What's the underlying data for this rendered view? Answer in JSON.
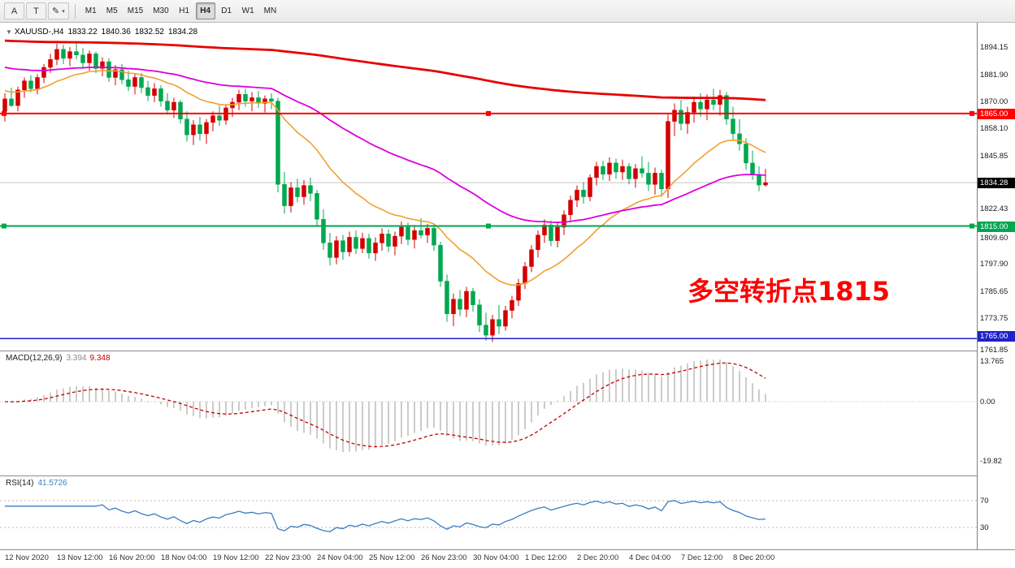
{
  "toolbar": {
    "tools": [
      {
        "label": "A"
      },
      {
        "label": "T"
      },
      {
        "label": "✎",
        "dropdown": "▾"
      }
    ],
    "timeframes": [
      "M1",
      "M5",
      "M15",
      "M30",
      "H1",
      "H4",
      "D1",
      "W1",
      "MN"
    ],
    "active_timeframe": "H4"
  },
  "chart_header": {
    "collapse_icon": "▼",
    "symbol_period": "XAUUSD-,H4",
    "open": "1833.22",
    "high": "1840.36",
    "low": "1832.52",
    "close": "1834.28"
  },
  "annotation": {
    "text": "多空转折点1815",
    "color": "#ff0000"
  },
  "indicators": {
    "macd": {
      "label": "MACD(12,26,9)",
      "main_value": "3.394",
      "signal_value": "9.348",
      "axis_labels": [
        "13.765",
        "0.00",
        "-19.82"
      ],
      "axis_values": [
        13.765,
        0,
        -19.82
      ]
    },
    "rsi": {
      "label": "RSI(14)",
      "value": "41.5726",
      "axis_labels": [
        "70",
        "30"
      ],
      "axis_values": [
        70,
        30
      ]
    }
  },
  "price_scale": [
    {
      "text": "1894.15",
      "price": 1894.15,
      "style": "plain"
    },
    {
      "text": "1881.90",
      "price": 1881.9,
      "style": "plain"
    },
    {
      "text": "1870.00",
      "price": 1870.0,
      "style": "plain"
    },
    {
      "text": "1865.00",
      "price": 1865.0,
      "style": "red"
    },
    {
      "text": "1858.10",
      "price": 1858.1,
      "style": "plain"
    },
    {
      "text": "1845.85",
      "price": 1845.85,
      "style": "plain"
    },
    {
      "text": "1834.28",
      "price": 1834.28,
      "style": "black"
    },
    {
      "text": "1822.43",
      "price": 1822.43,
      "style": "plain"
    },
    {
      "text": "1815.00",
      "price": 1815.0,
      "style": "green"
    },
    {
      "text": "1809.60",
      "price": 1809.6,
      "style": "plain"
    },
    {
      "text": "1797.90",
      "price": 1797.9,
      "style": "plain"
    },
    {
      "text": "1785.65",
      "price": 1785.65,
      "style": "plain"
    },
    {
      "text": "1773.75",
      "price": 1773.75,
      "style": "plain"
    },
    {
      "text": "1765.00",
      "price": 1765.0,
      "style": "blue"
    },
    {
      "text": "1761.85",
      "price": 1761.85,
      "style": "plain"
    }
  ],
  "time_axis": [
    "12 Nov 2020",
    "13 Nov 12:00",
    "16 Nov 20:00",
    "18 Nov 04:00",
    "19 Nov 12:00",
    "22 Nov 23:00",
    "24 Nov 04:00",
    "25 Nov 12:00",
    "26 Nov 23:00",
    "30 Nov 04:00",
    "1 Dec 12:00",
    "2 Dec 20:00",
    "4 Dec 04:00",
    "7 Dec 12:00",
    "8 Dec 20:00"
  ],
  "chart_data": {
    "type": "candlestick",
    "symbol": "XAUUSD-",
    "timeframe": "H4",
    "title": "XAUUSD-,H4 1833.22 1840.36 1832.52 1834.28",
    "y_range": [
      1761,
      1902
    ],
    "colors": {
      "up": "#d40000",
      "down": "#00a84f"
    },
    "ohlc": [
      [
        1866.0,
        1874.0,
        1861.5,
        1871.5
      ],
      [
        1871.5,
        1876.5,
        1868.0,
        1868.5
      ],
      [
        1868.5,
        1877.0,
        1866.0,
        1875.5
      ],
      [
        1875.5,
        1881.0,
        1872.0,
        1879.5
      ],
      [
        1879.5,
        1882.0,
        1874.5,
        1876.0
      ],
      [
        1876.0,
        1882.5,
        1873.5,
        1881.0
      ],
      [
        1881.0,
        1887.0,
        1878.5,
        1885.5
      ],
      [
        1885.5,
        1891.5,
        1883.0,
        1889.0
      ],
      [
        1889.0,
        1896.0,
        1886.5,
        1893.5
      ],
      [
        1893.5,
        1895.5,
        1887.0,
        1889.5
      ],
      [
        1889.5,
        1894.5,
        1886.0,
        1892.5
      ],
      [
        1892.5,
        1896.5,
        1889.0,
        1891.0
      ],
      [
        1891.0,
        1894.0,
        1885.5,
        1887.5
      ],
      [
        1887.5,
        1893.0,
        1884.0,
        1891.5
      ],
      [
        1891.5,
        1892.5,
        1883.0,
        1885.0
      ],
      [
        1885.0,
        1890.0,
        1881.5,
        1888.0
      ],
      [
        1888.0,
        1889.5,
        1879.0,
        1881.0
      ],
      [
        1881.0,
        1886.5,
        1877.5,
        1884.5
      ],
      [
        1884.5,
        1887.0,
        1878.0,
        1880.0
      ],
      [
        1880.0,
        1884.0,
        1875.0,
        1877.0
      ],
      [
        1877.0,
        1882.5,
        1873.5,
        1881.0
      ],
      [
        1881.0,
        1883.0,
        1874.0,
        1876.5
      ],
      [
        1876.5,
        1879.5,
        1870.5,
        1873.0
      ],
      [
        1873.0,
        1878.5,
        1870.0,
        1876.0
      ],
      [
        1876.0,
        1877.5,
        1868.0,
        1870.5
      ],
      [
        1870.5,
        1874.0,
        1864.5,
        1866.5
      ],
      [
        1866.5,
        1872.0,
        1863.0,
        1870.0
      ],
      [
        1870.0,
        1871.0,
        1860.5,
        1862.5
      ],
      [
        1862.5,
        1866.0,
        1852.5,
        1855.5
      ],
      [
        1855.5,
        1862.0,
        1851.0,
        1860.0
      ],
      [
        1860.0,
        1863.5,
        1853.0,
        1856.0
      ],
      [
        1856.0,
        1862.5,
        1851.5,
        1861.0
      ],
      [
        1861.0,
        1866.0,
        1857.0,
        1864.0
      ],
      [
        1864.0,
        1868.5,
        1859.5,
        1862.0
      ],
      [
        1862.0,
        1869.0,
        1860.0,
        1867.5
      ],
      [
        1867.5,
        1872.0,
        1863.5,
        1870.0
      ],
      [
        1870.0,
        1875.5,
        1866.5,
        1873.5
      ],
      [
        1873.5,
        1876.0,
        1868.0,
        1870.5
      ],
      [
        1870.5,
        1874.5,
        1866.0,
        1872.0
      ],
      [
        1872.0,
        1875.0,
        1867.5,
        1869.5
      ],
      [
        1869.5,
        1873.0,
        1865.5,
        1871.5
      ],
      [
        1871.5,
        1874.0,
        1867.0,
        1870.5
      ],
      [
        1870.5,
        1872.0,
        1830.0,
        1833.5
      ],
      [
        1833.5,
        1839.0,
        1820.5,
        1824.0
      ],
      [
        1824.0,
        1834.5,
        1821.0,
        1832.0
      ],
      [
        1832.0,
        1836.0,
        1825.5,
        1828.0
      ],
      [
        1828.0,
        1835.5,
        1824.5,
        1833.0
      ],
      [
        1833.0,
        1836.5,
        1826.0,
        1829.5
      ],
      [
        1829.5,
        1831.0,
        1815.0,
        1818.0
      ],
      [
        1818.0,
        1822.5,
        1804.5,
        1807.5
      ],
      [
        1807.5,
        1812.0,
        1797.5,
        1801.0
      ],
      [
        1801.0,
        1810.5,
        1798.0,
        1808.5
      ],
      [
        1808.5,
        1811.0,
        1800.0,
        1803.5
      ],
      [
        1803.5,
        1812.5,
        1801.5,
        1810.0
      ],
      [
        1810.0,
        1813.0,
        1802.5,
        1805.0
      ],
      [
        1805.0,
        1812.0,
        1803.0,
        1809.5
      ],
      [
        1809.5,
        1811.5,
        1800.5,
        1803.0
      ],
      [
        1803.0,
        1810.0,
        1799.5,
        1807.5
      ],
      [
        1807.5,
        1814.0,
        1804.0,
        1811.5
      ],
      [
        1811.5,
        1813.5,
        1803.5,
        1806.0
      ],
      [
        1806.0,
        1812.5,
        1802.0,
        1810.5
      ],
      [
        1810.5,
        1817.0,
        1807.0,
        1814.5
      ],
      [
        1814.5,
        1816.5,
        1806.5,
        1809.0
      ],
      [
        1809.0,
        1815.5,
        1805.0,
        1813.0
      ],
      [
        1813.0,
        1818.5,
        1809.5,
        1811.0
      ],
      [
        1811.0,
        1816.0,
        1807.5,
        1814.0
      ],
      [
        1814.0,
        1815.5,
        1804.0,
        1806.5
      ],
      [
        1806.5,
        1808.0,
        1788.0,
        1790.5
      ],
      [
        1790.5,
        1793.5,
        1772.5,
        1776.0
      ],
      [
        1776.0,
        1785.0,
        1770.5,
        1782.5
      ],
      [
        1782.5,
        1786.5,
        1775.0,
        1778.0
      ],
      [
        1778.0,
        1788.0,
        1774.5,
        1786.0
      ],
      [
        1786.0,
        1787.5,
        1777.0,
        1780.0
      ],
      [
        1780.0,
        1782.5,
        1768.0,
        1771.0
      ],
      [
        1771.0,
        1776.5,
        1764.0,
        1766.5
      ],
      [
        1766.5,
        1775.5,
        1763.5,
        1773.5
      ],
      [
        1773.5,
        1780.0,
        1767.0,
        1770.5
      ],
      [
        1770.5,
        1779.5,
        1768.5,
        1777.5
      ],
      [
        1777.5,
        1784.0,
        1774.0,
        1782.0
      ],
      [
        1782.0,
        1791.5,
        1779.5,
        1789.5
      ],
      [
        1789.5,
        1799.0,
        1787.0,
        1797.0
      ],
      [
        1797.0,
        1806.5,
        1794.5,
        1804.5
      ],
      [
        1804.5,
        1813.0,
        1801.0,
        1811.0
      ],
      [
        1811.0,
        1818.0,
        1807.5,
        1815.5
      ],
      [
        1815.5,
        1817.5,
        1806.0,
        1808.5
      ],
      [
        1808.5,
        1816.5,
        1805.5,
        1814.5
      ],
      [
        1814.5,
        1822.0,
        1811.0,
        1820.0
      ],
      [
        1820.0,
        1828.5,
        1817.0,
        1826.5
      ],
      [
        1826.5,
        1833.0,
        1823.5,
        1831.0
      ],
      [
        1831.0,
        1834.5,
        1825.0,
        1828.0
      ],
      [
        1828.0,
        1838.0,
        1826.0,
        1836.5
      ],
      [
        1836.5,
        1843.5,
        1833.0,
        1841.5
      ],
      [
        1841.5,
        1844.0,
        1835.5,
        1838.0
      ],
      [
        1838.0,
        1845.5,
        1835.0,
        1843.0
      ],
      [
        1843.0,
        1845.0,
        1836.0,
        1839.0
      ],
      [
        1839.0,
        1844.5,
        1835.5,
        1841.5
      ],
      [
        1841.5,
        1843.0,
        1833.5,
        1836.0
      ],
      [
        1836.0,
        1842.5,
        1832.0,
        1840.5
      ],
      [
        1840.5,
        1846.0,
        1836.5,
        1838.5
      ],
      [
        1838.5,
        1843.5,
        1830.5,
        1833.5
      ],
      [
        1833.5,
        1841.0,
        1829.0,
        1838.5
      ],
      [
        1838.5,
        1840.0,
        1828.0,
        1831.5
      ],
      [
        1831.5,
        1864.5,
        1827.5,
        1861.5
      ],
      [
        1861.5,
        1869.5,
        1855.0,
        1866.5
      ],
      [
        1866.5,
        1871.0,
        1857.5,
        1860.5
      ],
      [
        1860.5,
        1868.0,
        1856.0,
        1865.5
      ],
      [
        1865.5,
        1872.5,
        1861.0,
        1870.0
      ],
      [
        1870.0,
        1874.0,
        1863.5,
        1867.0
      ],
      [
        1867.0,
        1873.5,
        1862.0,
        1871.0
      ],
      [
        1871.0,
        1876.0,
        1866.5,
        1869.0
      ],
      [
        1869.0,
        1875.5,
        1864.0,
        1873.0
      ],
      [
        1873.0,
        1874.5,
        1860.0,
        1862.5
      ],
      [
        1862.5,
        1868.0,
        1853.0,
        1856.0
      ],
      [
        1856.0,
        1862.5,
        1848.5,
        1851.5
      ],
      [
        1851.5,
        1854.0,
        1840.0,
        1843.0
      ],
      [
        1843.0,
        1848.5,
        1835.5,
        1838.0
      ],
      [
        1838.0,
        1841.5,
        1830.5,
        1833.22
      ],
      [
        1833.22,
        1840.36,
        1832.52,
        1834.28
      ]
    ],
    "moving_averages": [
      {
        "name": "ma-fast",
        "color": "#f0a030",
        "alpha": 0.095,
        "seed": 1875.5,
        "width": 1.6
      },
      {
        "name": "ma-mid",
        "color": "#dc00dc",
        "alpha": 0.033,
        "seed": 1886.0,
        "width": 1.8
      },
      {
        "name": "ma-slow",
        "color": "#e80000",
        "alpha": 0.005,
        "seed": 1897.5,
        "width": 2.8
      }
    ],
    "hlines": [
      {
        "price": 1865.0,
        "color": "#ff0000",
        "width": 2,
        "handles": true
      },
      {
        "price": 1815.0,
        "color": "#00a651",
        "width": 2,
        "handles": true
      },
      {
        "price": 1765.0,
        "color": "#2121c8",
        "width": 1.6,
        "handles": false
      }
    ],
    "current_price": 1834.28,
    "macd": {
      "fast": 12,
      "slow": 26,
      "signal": 9
    },
    "rsi_period": 14
  }
}
